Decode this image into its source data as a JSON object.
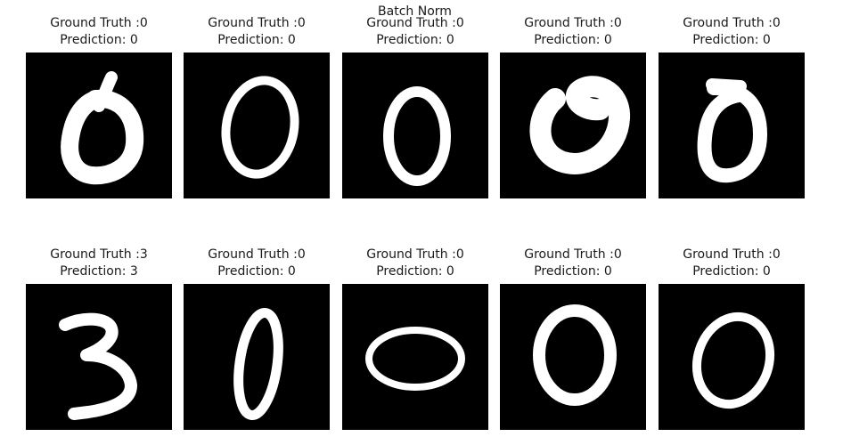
{
  "suptitle": "Batch Norm",
  "panels": [
    {
      "truth": "Ground Truth :0",
      "pred": "Prediction: 0",
      "digit": "0"
    },
    {
      "truth": "Ground Truth :0",
      "pred": "Prediction: 0",
      "digit": "0"
    },
    {
      "truth": "Ground Truth :0",
      "pred": "Prediction: 0",
      "digit": "0"
    },
    {
      "truth": "Ground Truth :0",
      "pred": "Prediction: 0",
      "digit": "0"
    },
    {
      "truth": "Ground Truth :0",
      "pred": "Prediction: 0",
      "digit": "0"
    },
    {
      "truth": "Ground Truth :3",
      "pred": "Prediction: 3",
      "digit": "3"
    },
    {
      "truth": "Ground Truth :0",
      "pred": "Prediction: 0",
      "digit": "0"
    },
    {
      "truth": "Ground Truth :0",
      "pred": "Prediction: 0",
      "digit": "0"
    },
    {
      "truth": "Ground Truth :0",
      "pred": "Prediction: 0",
      "digit": "0"
    },
    {
      "truth": "Ground Truth :0",
      "pred": "Prediction: 0",
      "digit": "0"
    }
  ]
}
